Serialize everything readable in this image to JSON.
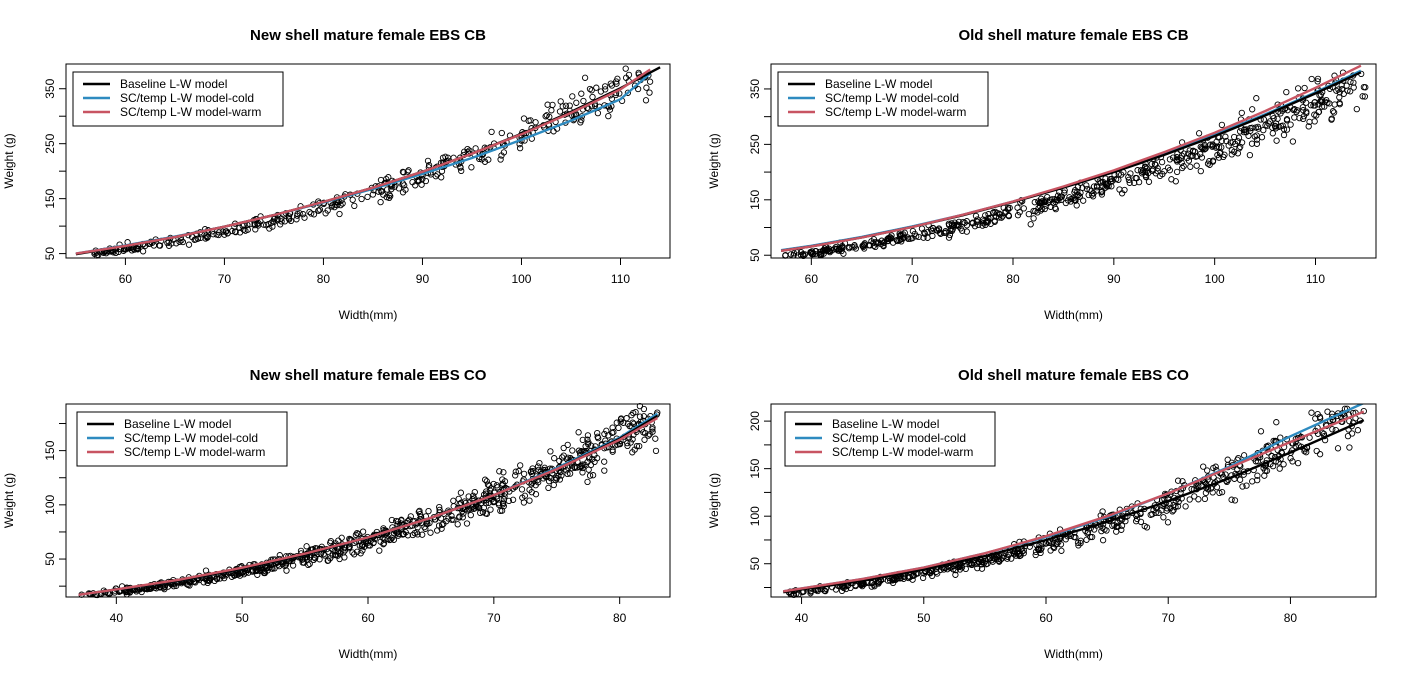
{
  "figure": {
    "name": "length-weight-panels"
  },
  "chart_data": [
    {
      "type": "scatter",
      "title": "New shell mature female EBS CB",
      "xlabel": "Width(mm)",
      "ylabel": "Weight (g)",
      "xlim": [
        54,
        115
      ],
      "ylim": [
        42,
        395
      ],
      "xticks": [
        60,
        70,
        80,
        90,
        100,
        110
      ],
      "yticks": [
        50,
        150,
        250,
        350
      ],
      "legend_position": "top-left",
      "grid": false,
      "points": {
        "x_range": [
          55,
          113
        ],
        "a": 0.000302,
        "b": 2.97,
        "scatter_pct": 0.06,
        "n": 420,
        "seed": 11
      },
      "series": [
        {
          "name": "Baseline L-W model",
          "color": "#000000",
          "x": [
            55,
            60,
            65,
            70,
            75,
            80,
            85,
            90,
            95,
            100,
            105,
            110,
            114
          ],
          "y": [
            49,
            64,
            80,
            99,
            120,
            144,
            170,
            199,
            232,
            268,
            308,
            351,
            389
          ]
        },
        {
          "name": "SC/temp L-W model-cold",
          "color": "#2E8BC0",
          "x": [
            55,
            60,
            65,
            70,
            75,
            80,
            85,
            90,
            95,
            100,
            105,
            110,
            113
          ],
          "y": [
            50,
            65,
            81,
            99,
            120,
            143,
            168,
            195,
            224,
            257,
            292,
            331,
            378
          ]
        },
        {
          "name": "SC/temp L-W model-warm",
          "color": "#C85462",
          "x": [
            55,
            60,
            65,
            70,
            75,
            80,
            85,
            90,
            95,
            100,
            105,
            110,
            113
          ],
          "y": [
            50,
            64,
            80,
            99,
            120,
            144,
            170,
            199,
            232,
            267,
            306,
            349,
            385
          ]
        }
      ]
    },
    {
      "type": "scatter",
      "title": "Old shell mature female EBS CB",
      "xlabel": "Width(mm)",
      "ylabel": "Weight (g)",
      "xlim": [
        56,
        116
      ],
      "ylim": [
        45,
        395
      ],
      "xticks": [
        60,
        70,
        80,
        90,
        100,
        110
      ],
      "yticks": [
        50,
        150,
        250,
        350
      ],
      "legend_position": "top-left",
      "grid": false,
      "points": {
        "x_range": [
          57,
          115
        ],
        "a": 0.000302,
        "b": 2.955,
        "scatter_pct": 0.06,
        "n": 620,
        "seed": 23
      },
      "series": [
        {
          "name": "Baseline L-W model",
          "color": "#000000",
          "x": [
            57,
            60,
            65,
            70,
            75,
            80,
            85,
            90,
            95,
            100,
            105,
            110,
            114.5
          ],
          "y": [
            58,
            66,
            82,
            101,
            122,
            146,
            172,
            200,
            231,
            265,
            302,
            342,
            380
          ]
        },
        {
          "name": "SC/temp L-W model-cold",
          "color": "#2E8BC0",
          "x": [
            57,
            60,
            65,
            70,
            75,
            80,
            85,
            90,
            95,
            100,
            105,
            110,
            114.5
          ],
          "y": [
            59,
            67,
            83,
            102,
            123,
            147,
            173,
            202,
            233,
            267,
            304,
            344,
            383
          ]
        },
        {
          "name": "SC/temp L-W model-warm",
          "color": "#C85462",
          "x": [
            57,
            60,
            65,
            70,
            75,
            80,
            85,
            90,
            95,
            100,
            105,
            110,
            114.5
          ],
          "y": [
            58,
            66,
            82,
            101,
            123,
            147,
            174,
            203,
            236,
            271,
            310,
            352,
            392
          ]
        }
      ]
    },
    {
      "type": "scatter",
      "title": "New shell mature female EBS CO",
      "xlabel": "Width(mm)",
      "ylabel": "Weight (g)",
      "xlim": [
        36,
        84
      ],
      "ylim": [
        15,
        193
      ],
      "xticks": [
        40,
        50,
        60,
        70,
        80
      ],
      "yticks": [
        50,
        100,
        150
      ],
      "legend_position": "top-left",
      "grid": false,
      "points": {
        "x_range": [
          37,
          83
        ],
        "a": 0.000276,
        "b": 3.03,
        "scatter_pct": 0.07,
        "n": 850,
        "seed": 37
      },
      "series": [
        {
          "name": "Baseline L-W model",
          "color": "#000000",
          "x": [
            37,
            40,
            45,
            50,
            55,
            60,
            65,
            70,
            75,
            80,
            83
          ],
          "y": [
            17,
            22,
            30,
            41,
            54,
            70,
            88,
            109,
            133,
            161,
            182
          ]
        },
        {
          "name": "SC/temp L-W model-cold",
          "color": "#2E8BC0",
          "x": [
            37,
            40,
            45,
            50,
            55,
            60,
            65,
            70,
            75,
            80,
            83
          ],
          "y": [
            17,
            22,
            30,
            41,
            54,
            70,
            88,
            109,
            134,
            162,
            184
          ]
        },
        {
          "name": "SC/temp L-W model-warm",
          "color": "#C85462",
          "x": [
            37,
            40,
            45,
            50,
            55,
            60,
            65,
            70,
            75,
            80,
            83
          ],
          "y": [
            17,
            22,
            31,
            42,
            55,
            70,
            88,
            109,
            133,
            160,
            180
          ]
        }
      ]
    },
    {
      "type": "scatter",
      "title": "Old shell mature female EBS CO",
      "xlabel": "Width(mm)",
      "ylabel": "Weight (g)",
      "xlim": [
        37.5,
        87
      ],
      "ylim": [
        15,
        218
      ],
      "xticks": [
        40,
        50,
        60,
        70,
        80
      ],
      "yticks": [
        50,
        100,
        150,
        200
      ],
      "legend_position": "top-left",
      "grid": false,
      "points": {
        "x_range": [
          38.5,
          86
        ],
        "a": 0.000193,
        "b": 3.13,
        "scatter_pct": 0.07,
        "n": 620,
        "seed": 53
      },
      "series": [
        {
          "name": "Baseline L-W model",
          "color": "#000000",
          "x": [
            38.5,
            40,
            45,
            50,
            55,
            60,
            65,
            70,
            75,
            80,
            86
          ],
          "y": [
            20,
            23,
            32,
            44,
            58,
            75,
            94,
            116,
            140,
            167,
            201
          ]
        },
        {
          "name": "SC/temp L-W model-cold",
          "color": "#2E8BC0",
          "x": [
            38.5,
            40,
            45,
            50,
            55,
            60,
            65,
            70,
            75,
            80,
            86
          ],
          "y": [
            21,
            24,
            34,
            46,
            61,
            78,
            99,
            124,
            152,
            184,
            219
          ]
        },
        {
          "name": "SC/temp L-W model-warm",
          "color": "#C85462",
          "x": [
            38.5,
            40,
            45,
            50,
            55,
            60,
            65,
            70,
            75,
            80,
            86
          ],
          "y": [
            21,
            24,
            34,
            46,
            61,
            79,
            100,
            124,
            151,
            178,
            210
          ]
        }
      ]
    }
  ]
}
